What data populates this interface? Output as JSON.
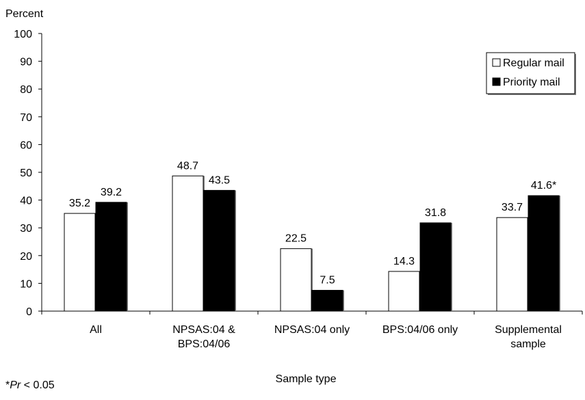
{
  "chart_data": {
    "type": "bar",
    "title": "",
    "ylabel": "Percent",
    "xlabel": "Sample type",
    "ylim": [
      0,
      100
    ],
    "yticks": [
      0,
      10,
      20,
      30,
      40,
      50,
      60,
      70,
      80,
      90,
      100
    ],
    "categories": [
      [
        "All"
      ],
      [
        "NPSAS:04 &",
        "BPS:04/06"
      ],
      [
        "NPSAS:04 only"
      ],
      [
        "BPS:04/06 only"
      ],
      [
        "Supplemental",
        "sample"
      ]
    ],
    "series": [
      {
        "name": "Regular mail",
        "color": "#ffffff",
        "values": [
          35.2,
          48.7,
          22.5,
          14.3,
          33.7
        ],
        "labels": [
          "35.2",
          "48.7",
          "22.5",
          "14.3",
          "33.7"
        ]
      },
      {
        "name": "Priority mail",
        "color": "#000000",
        "values": [
          39.2,
          43.5,
          7.5,
          31.8,
          41.6
        ],
        "labels": [
          "39.2",
          "43.5",
          "7.5",
          "31.8",
          "41.6*"
        ]
      }
    ],
    "legend_position": "top-right",
    "grid": false
  },
  "footnote": {
    "prefix": "*",
    "italic": "Pr",
    "suffix": " < 0.05"
  }
}
